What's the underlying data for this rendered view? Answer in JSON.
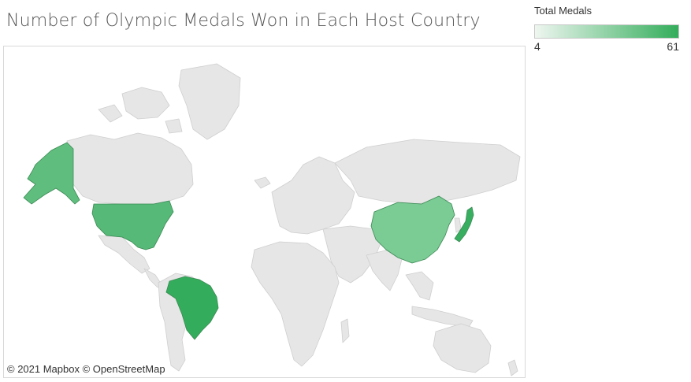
{
  "title": "Number of Olympic Medals Won in Each Host Country",
  "legend": {
    "title": "Total Medals",
    "min_label": "4",
    "max_label": "61",
    "min_value": 4,
    "max_value": 61,
    "color_low": "#eef6f0",
    "color_high": "#33ad5b"
  },
  "attribution": "© 2021 Mapbox  © OpenStreetMap",
  "colors": {
    "land": "#e6e6e6",
    "border": "#c8c8c8",
    "ocean": "#ffffff"
  },
  "highlighted_countries": [
    {
      "name": "United States",
      "value": 49
    },
    {
      "name": "Brazil",
      "value": 61
    },
    {
      "name": "China",
      "value": 35
    },
    {
      "name": "Japan",
      "value": 58
    }
  ]
}
